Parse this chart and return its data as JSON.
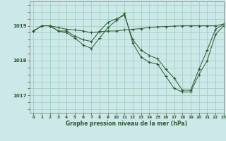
{
  "title": "Graphe pression niveau de la mer (hPa)",
  "bg_color": "#cce8e8",
  "grid_color": "#99ccbb",
  "line_color": "#2d5a2d",
  "xlim": [
    -0.5,
    23
  ],
  "ylim": [
    1016.5,
    1019.7
  ],
  "yticks": [
    1017,
    1018,
    1019
  ],
  "xticks": [
    0,
    1,
    2,
    3,
    4,
    5,
    6,
    7,
    8,
    9,
    10,
    11,
    12,
    13,
    14,
    15,
    16,
    17,
    18,
    19,
    20,
    21,
    22,
    23
  ],
  "series1_x": [
    0,
    1,
    2,
    3,
    4,
    5,
    6,
    7,
    8,
    9,
    10,
    11,
    12,
    13,
    14,
    15,
    16,
    17,
    18,
    19,
    20,
    21,
    22,
    23
  ],
  "series1_y": [
    1018.85,
    1019.0,
    1019.0,
    1018.95,
    1018.9,
    1018.88,
    1018.85,
    1018.8,
    1018.83,
    1018.85,
    1018.85,
    1018.88,
    1018.9,
    1018.92,
    1018.95,
    1018.97,
    1018.98,
    1018.99,
    1019.0,
    1019.0,
    1019.0,
    1019.0,
    1019.0,
    1019.05
  ],
  "series2_x": [
    0,
    1,
    2,
    3,
    4,
    5,
    6,
    7,
    8,
    9,
    10,
    11,
    12,
    13,
    14,
    15,
    16,
    17,
    18,
    19,
    20,
    21,
    22,
    23
  ],
  "series2_y": [
    1018.85,
    1019.0,
    1019.0,
    1018.85,
    1018.85,
    1018.7,
    1018.6,
    1018.55,
    1018.85,
    1019.1,
    1019.2,
    1019.3,
    1018.6,
    1018.3,
    1018.15,
    1018.05,
    1017.75,
    1017.5,
    1017.15,
    1017.15,
    1017.75,
    1018.3,
    1018.9,
    1019.05
  ],
  "series3_x": [
    0,
    1,
    2,
    3,
    4,
    5,
    6,
    7,
    8,
    9,
    10,
    11,
    12,
    13,
    14,
    15,
    16,
    17,
    18,
    19,
    20,
    21,
    22,
    23
  ],
  "series3_y": [
    1018.85,
    1019.0,
    1019.0,
    1018.85,
    1018.8,
    1018.65,
    1018.45,
    1018.35,
    1018.65,
    1018.95,
    1019.15,
    1019.35,
    1018.5,
    1018.1,
    1017.95,
    1017.9,
    1017.55,
    1017.2,
    1017.1,
    1017.1,
    1017.6,
    1018.0,
    1018.75,
    1019.0
  ]
}
